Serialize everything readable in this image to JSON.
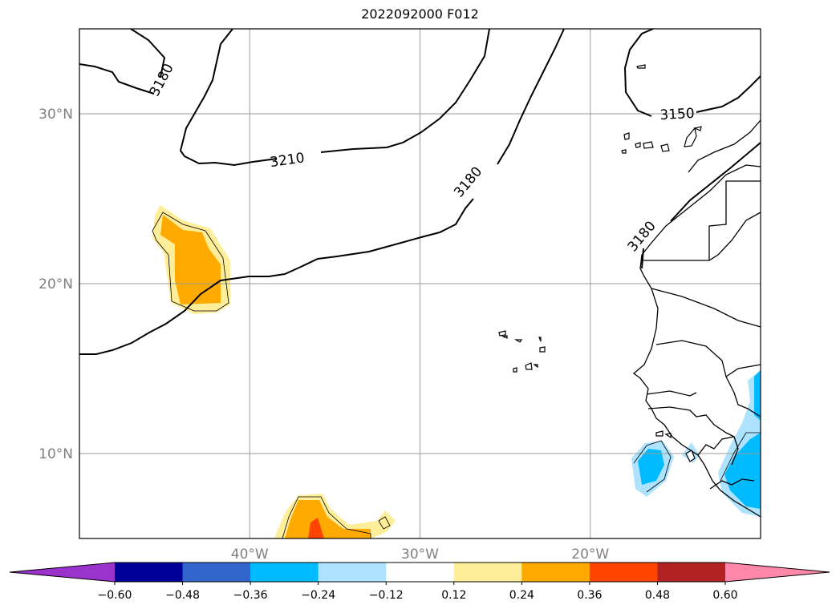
{
  "title": "2022092000 F012",
  "map": {
    "lat_range": [
      5,
      35
    ],
    "lon_range": [
      -50,
      -10
    ],
    "grid": true,
    "lat_ticks": [
      {
        "value": 10,
        "label": "10°N"
      },
      {
        "value": 20,
        "label": "20°N"
      },
      {
        "value": 30,
        "label": "30°N"
      }
    ],
    "lon_ticks": [
      {
        "value": -40,
        "label": "40°W"
      },
      {
        "value": -30,
        "label": "30°W"
      },
      {
        "value": -20,
        "label": "20°W"
      }
    ],
    "contour_labels": [
      {
        "text": "3180",
        "lon": -45.2,
        "lat": 32.0,
        "angle": -62
      },
      {
        "text": "3210",
        "lon": -37.8,
        "lat": 27.3,
        "angle": -8
      },
      {
        "text": "3180",
        "lon": -27.2,
        "lat": 26.0,
        "angle": -50
      },
      {
        "text": "3150",
        "lon": -14.9,
        "lat": 30.0,
        "angle": -3
      },
      {
        "text": "3180",
        "lon": -17.0,
        "lat": 22.8,
        "angle": -50
      }
    ]
  },
  "colorbar": {
    "colors": [
      "#9933cc",
      "#000099",
      "#3366cc",
      "#00bbff",
      "#aee3ff",
      "#ffffff",
      "#ffee99",
      "#ffaa00",
      "#ff4400",
      "#b22222",
      "#ff88aa"
    ],
    "tick_labels": [
      "−0.60",
      "−0.48",
      "−0.36",
      "−0.24",
      "−0.12",
      "0.12",
      "0.24",
      "0.36",
      "0.48",
      "0.60"
    ]
  }
}
